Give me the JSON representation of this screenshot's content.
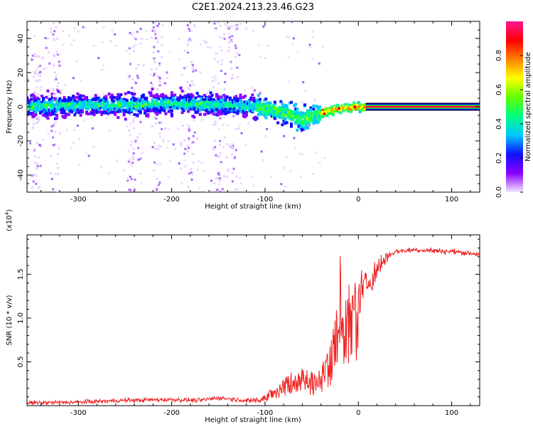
{
  "figure": {
    "title": "C2E1.2024.213.23.46.G23"
  },
  "chart_data": [
    {
      "type": "heatmap",
      "title": "",
      "xlabel": "Height of straight line (km)",
      "ylabel": "Frequency (Hz)",
      "xlim": [
        -355,
        130
      ],
      "ylim": [
        -50,
        50
      ],
      "xticks": [
        -300,
        -200,
        -100,
        0,
        100
      ],
      "yticks": [
        -40,
        -20,
        0,
        20,
        40
      ],
      "ridge": {
        "x": [
          -355,
          -300,
          -250,
          -200,
          -150,
          -110,
          -90,
          -70,
          -60,
          -50,
          -40,
          -30,
          -20,
          0,
          10,
          130
        ],
        "y": [
          0,
          1,
          1,
          2,
          1,
          0,
          -2,
          -5,
          -8,
          -6,
          -4,
          -2,
          -1,
          0,
          0,
          0
        ]
      },
      "scatter_columns": [
        -345,
        -325,
        -240,
        -215,
        -180,
        -150,
        -135
      ],
      "colorbar": {
        "label": "Normalized spectral amplitude",
        "range": [
          0,
          1
        ],
        "ticks": [
          "0.0",
          "0.2",
          "0.4",
          "0.6",
          "0.8"
        ],
        "colors": [
          "#f2e6ff",
          "#8a00ff",
          "#1010ff",
          "#00c8ff",
          "#00ff80",
          "#60ff00",
          "#ffff00",
          "#ff8000",
          "#ff0000",
          "#ff1493"
        ]
      }
    },
    {
      "type": "line",
      "title": "",
      "xlabel": "Height of straight line (km)",
      "ylabel": "SNR (10 * v/v)",
      "multiplier": "(x10",
      "multiplier_exp": "4",
      "multiplier_close": ")",
      "xlim": [
        -355,
        130
      ],
      "ylim": [
        0,
        1.95
      ],
      "xticks": [
        -300,
        -200,
        -100,
        0,
        100
      ],
      "yticks": [
        0.5,
        1.0,
        1.5
      ],
      "ytick_labels": [
        "0.5",
        "1.0",
        "1.5"
      ],
      "series": [
        {
          "color": "#ee2222",
          "x": [
            -355,
            -300,
            -250,
            -200,
            -170,
            -150,
            -120,
            -100,
            -90,
            -80,
            -70,
            -60,
            -50,
            -40,
            -30,
            -25,
            -20,
            -18,
            -15,
            -10,
            0,
            10,
            20,
            30,
            40,
            60,
            80,
            100,
            110,
            130
          ],
          "y": [
            0.03,
            0.04,
            0.06,
            0.07,
            0.06,
            0.09,
            0.06,
            0.1,
            0.18,
            0.26,
            0.3,
            0.33,
            0.3,
            0.34,
            0.55,
            0.9,
            1.25,
            1.7,
            0.85,
            1.1,
            1.25,
            1.4,
            1.55,
            1.7,
            1.76,
            1.78,
            1.77,
            1.76,
            1.75,
            1.73
          ]
        }
      ]
    }
  ]
}
